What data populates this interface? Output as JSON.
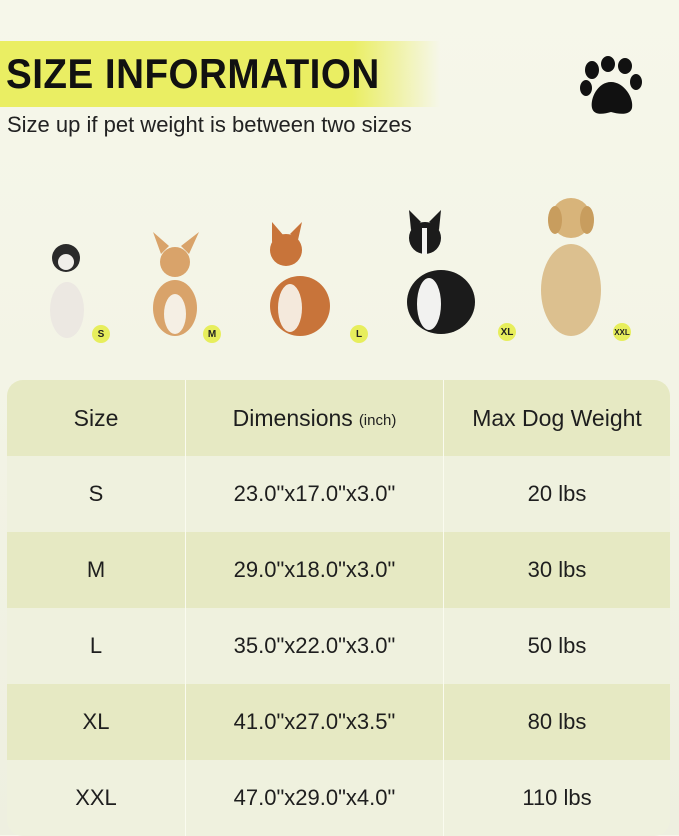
{
  "header": {
    "title": "SIZE INFORMATION",
    "subtitle": "Size up if pet weight is between two sizes",
    "icon": "paw-icon",
    "accent": "#eaee63"
  },
  "dogs": [
    {
      "size": "S",
      "breed": "French Bulldog"
    },
    {
      "size": "M",
      "breed": "Corgi"
    },
    {
      "size": "L",
      "breed": "Shiba Inu"
    },
    {
      "size": "XL",
      "breed": "Border Collie"
    },
    {
      "size": "XXL",
      "breed": "Golden Retriever"
    }
  ],
  "table": {
    "headers": {
      "size": "Size",
      "dimensions": "Dimensions",
      "unit": "(inch)",
      "weight": "Max Dog Weight"
    },
    "rows": [
      {
        "size": "S",
        "dimensions": "23.0\"x17.0\"x3.0\"",
        "weight": "20 lbs"
      },
      {
        "size": "M",
        "dimensions": "29.0\"x18.0\"x3.0\"",
        "weight": "30 lbs"
      },
      {
        "size": "L",
        "dimensions": "35.0\"x22.0\"x3.0\"",
        "weight": "50 lbs"
      },
      {
        "size": "XL",
        "dimensions": "41.0\"x27.0\"x3.5\"",
        "weight": "80 lbs"
      },
      {
        "size": "XXL",
        "dimensions": "47.0\"x29.0\"x4.0\"",
        "weight": "110 lbs"
      }
    ]
  }
}
